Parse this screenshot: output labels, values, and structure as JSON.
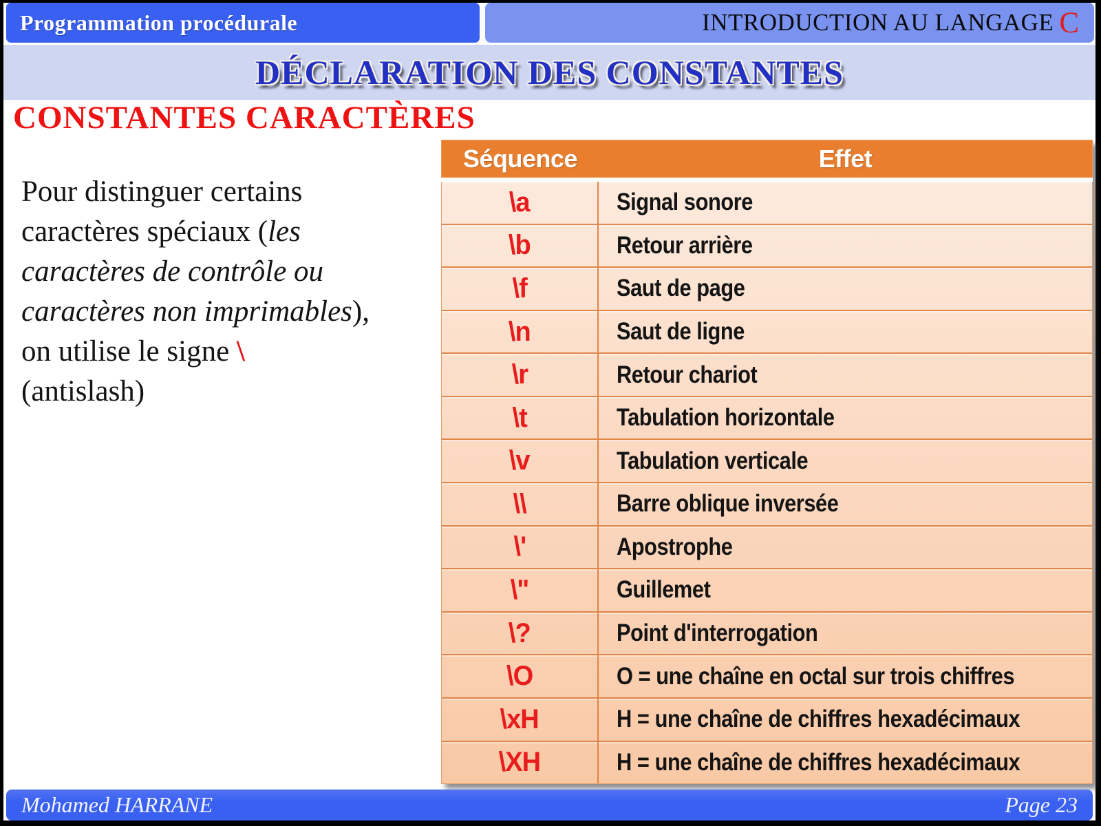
{
  "header": {
    "left_title": "Programmation procédurale",
    "right_title": "INTRODUCTION AU LANGAGE",
    "right_accent": "C"
  },
  "title": "DÉCLARATION DES CONSTANTES",
  "section_heading": "CONSTANTES CARACTÈRES",
  "paragraph": {
    "part1": "Pour distinguer certains\ncaractères spéciaux (",
    "italic": "les\ncaractères de contrôle ou\ncaractères non imprimables",
    "part2": "), \non utilise le signe ",
    "backslash": "\\",
    "part3": "\n(antislash)"
  },
  "table": {
    "headers": [
      "Séquence",
      "Effet"
    ],
    "rows": [
      {
        "seq": "\\a",
        "effect": "Signal sonore"
      },
      {
        "seq": "\\b",
        "effect": "Retour arrière"
      },
      {
        "seq": "\\f",
        "effect": "Saut de page"
      },
      {
        "seq": "\\n",
        "effect": "Saut de ligne"
      },
      {
        "seq": "\\r",
        "effect": "Retour chariot"
      },
      {
        "seq": "\\t",
        "effect": "Tabulation horizontale"
      },
      {
        "seq": "\\v",
        "effect": "Tabulation verticale"
      },
      {
        "seq": "\\\\",
        "effect": "Barre oblique inversée"
      },
      {
        "seq": "\\'",
        "effect": "Apostrophe"
      },
      {
        "seq": "\\\"",
        "effect": "Guillemet"
      },
      {
        "seq": "\\?",
        "effect": "Point d'interrogation"
      },
      {
        "seq": "\\O",
        "effect": "O = une chaîne en octal sur trois chiffres"
      },
      {
        "seq": "\\xH",
        "effect": "H = une chaîne de chiffres hexadécimaux"
      },
      {
        "seq": "\\XH",
        "effect": "H = une chaîne de chiffres hexadécimaux"
      }
    ]
  },
  "footer": {
    "author": "Mohamed HARRANE",
    "page": "Page 23"
  },
  "colors": {
    "header_blue": "#3a60f2",
    "header_light_blue": "#7a93f0",
    "title_band": "#ced6f2",
    "title_text": "#2230c3",
    "accent_red": "#ee1212",
    "table_header_orange": "#e87e2e",
    "table_row_light": "#fdeadd",
    "table_row_dark": "#f9c9a6",
    "table_border": "#db7d3c"
  }
}
